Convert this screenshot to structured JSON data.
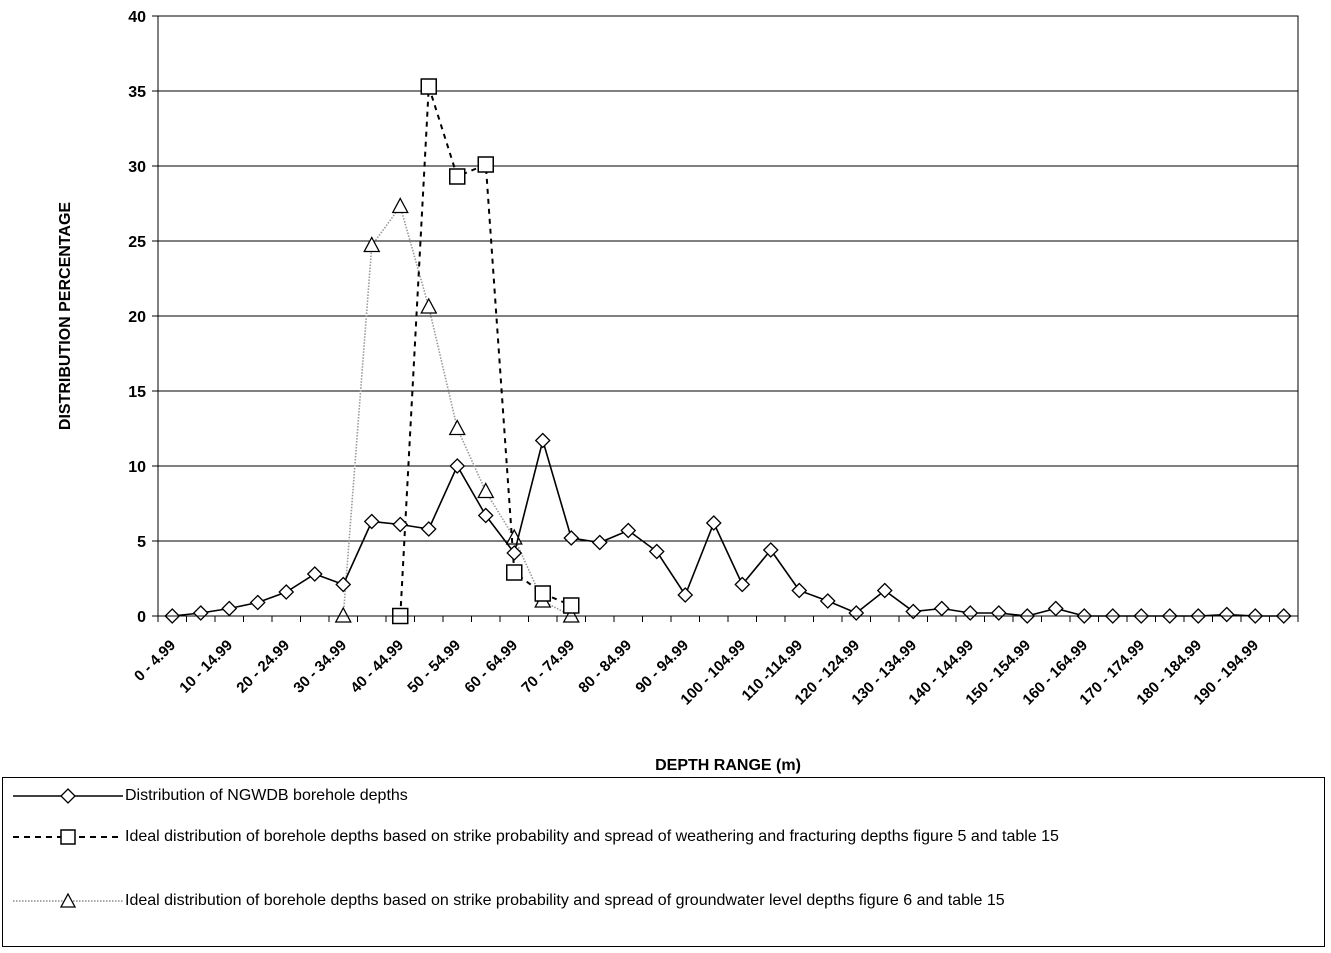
{
  "chart_data": {
    "type": "line",
    "xlabel": "DEPTH RANGE (m)",
    "ylabel": "DISTRIBUTION PERCENTAGE",
    "ylim": [
      0,
      40
    ],
    "yticks": [
      0,
      5,
      10,
      15,
      20,
      25,
      30,
      35,
      40
    ],
    "grid": true,
    "legend_position": "bottom",
    "tick_labels": [
      "0  -  4.99",
      "10 - 14.99",
      "20 - 24.99",
      "30 - 34.99",
      "40 - 44.99",
      "50 - 54.99",
      "60 - 64.99",
      "70 - 74.99",
      "80 - 84.99",
      "90 - 94.99",
      "100 - 104.99",
      "110 -114.99",
      "120 - 124.99",
      "130 - 134.99",
      "140 - 144.99",
      "150 - 154.99",
      "160 - 164.99",
      "170 - 174.99",
      "180 - 184.99",
      "190 - 194.99"
    ],
    "series": [
      {
        "name": "Distribution of NGWDB borehole depths",
        "style": "solid",
        "marker": "diamond",
        "color": "#000000",
        "values": [
          0.0,
          0.2,
          0.5,
          0.9,
          1.6,
          2.8,
          2.1,
          6.3,
          6.1,
          5.8,
          10.0,
          6.7,
          4.2,
          11.7,
          5.2,
          4.9,
          5.7,
          4.3,
          1.4,
          6.2,
          2.1,
          4.4,
          1.7,
          1.0,
          0.2,
          1.7,
          0.3,
          0.5,
          0.2,
          0.2,
          0.0,
          0.5,
          0.0,
          0.0,
          0.0,
          0.0,
          0.0,
          0.1,
          0.0,
          0.0
        ]
      },
      {
        "name": "Ideal distribution of borehole  depths based on strike probability  and spread of weathering  and fracturing depths figure 5 and table 15",
        "style": "dashed",
        "marker": "square",
        "color": "#000000",
        "values": [
          null,
          null,
          null,
          null,
          null,
          null,
          null,
          null,
          0.0,
          35.3,
          29.3,
          30.1,
          2.9,
          1.5,
          0.7,
          null,
          null,
          null,
          null,
          null,
          null,
          null,
          null,
          null,
          null,
          null,
          null,
          null,
          null,
          null,
          null,
          null,
          null,
          null,
          null,
          null,
          null,
          null,
          null,
          null
        ]
      },
      {
        "name": "Ideal distribution of borehole  depths based on strike probability and spread of groundwater level  depths figure 6 and table 15",
        "style": "dotted",
        "marker": "triangle",
        "color": "#888888",
        "values": [
          null,
          null,
          null,
          null,
          null,
          null,
          0.0,
          24.7,
          27.3,
          20.6,
          12.5,
          8.3,
          5.2,
          1.0,
          0.0,
          null,
          null,
          null,
          null,
          null,
          null,
          null,
          null,
          null,
          null,
          null,
          null,
          null,
          null,
          null,
          null,
          null,
          null,
          null,
          null,
          null,
          null,
          null,
          null,
          null
        ]
      }
    ]
  }
}
